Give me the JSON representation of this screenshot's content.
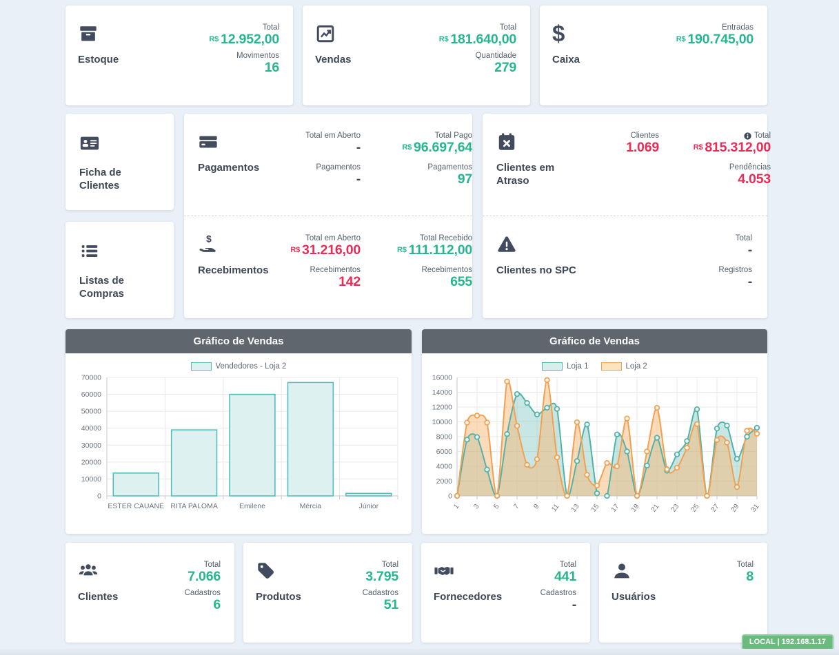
{
  "colors": {
    "background": "#e9f0f7",
    "accent_green": "#26b790",
    "alert_red": "#e92d56",
    "icon_slate": "#434c5e",
    "chart_header_bg": "#5f666e",
    "badge_green": "#6abb7d"
  },
  "cards": {
    "estoque": {
      "title": "Estoque",
      "stats": [
        {
          "label": "Total",
          "prefix": "R$",
          "value": "12.952,00",
          "color": "green"
        },
        {
          "label": "Movimentos",
          "value": "16",
          "color": "green"
        }
      ]
    },
    "vendas": {
      "title": "Vendas",
      "stats": [
        {
          "label": "Total",
          "prefix": "R$",
          "value": "181.640,00",
          "color": "green"
        },
        {
          "label": "Quantidade",
          "value": "279",
          "color": "green"
        }
      ]
    },
    "caixa": {
      "title": "Caixa",
      "stats": [
        {
          "label": "Entradas",
          "prefix": "R$",
          "value": "190.745,00",
          "color": "green"
        }
      ]
    },
    "ficha_clientes": {
      "title": "Ficha de Clientes"
    },
    "listas_compras": {
      "title": "Listas de Compras"
    },
    "pagamentos": {
      "title": "Pagamentos",
      "col1": [
        {
          "label": "Total em Aberto",
          "value": "-",
          "color": "dark"
        },
        {
          "label": "Pagamentos",
          "value": "-",
          "color": "dark"
        }
      ],
      "col2": [
        {
          "label": "Total Pago",
          "prefix": "R$",
          "value": "96.697,64",
          "color": "green"
        },
        {
          "label": "Pagamentos",
          "value": "97",
          "color": "green"
        }
      ]
    },
    "recebimentos": {
      "title": "Recebimentos",
      "col1": [
        {
          "label": "Total em Aberto",
          "prefix": "R$",
          "value": "31.216,00",
          "color": "red"
        },
        {
          "label": "Recebimentos",
          "value": "142",
          "color": "red"
        }
      ],
      "col2": [
        {
          "label": "Total Recebido",
          "prefix": "R$",
          "value": "111.112,00",
          "color": "green"
        },
        {
          "label": "Recebimentos",
          "value": "655",
          "color": "green"
        }
      ]
    },
    "clientes_atraso": {
      "title": "Clientes em Atraso",
      "col1": [
        {
          "label": "Clientes",
          "value": "1.069",
          "color": "red"
        }
      ],
      "col2": [
        {
          "label": "Total",
          "prefix": "R$",
          "value": "815.312,00",
          "color": "red"
        },
        {
          "label": "Pendências",
          "value": "4.053",
          "color": "red"
        }
      ]
    },
    "clientes_spc": {
      "title": "Clientes no SPC",
      "col2": [
        {
          "label": "Total",
          "value": "-",
          "color": "dark"
        },
        {
          "label": "Registros",
          "value": "-",
          "color": "dark"
        }
      ]
    },
    "clientes": {
      "title": "Clientes",
      "stats": [
        {
          "label": "Total",
          "value": "7.066",
          "color": "green"
        },
        {
          "label": "Cadastros",
          "value": "6",
          "color": "green"
        }
      ]
    },
    "produtos": {
      "title": "Produtos",
      "stats": [
        {
          "label": "Total",
          "value": "3.795",
          "color": "green"
        },
        {
          "label": "Cadastros",
          "value": "51",
          "color": "green"
        }
      ]
    },
    "fornecedores": {
      "title": "Fornecedores",
      "stats": [
        {
          "label": "Total",
          "value": "441",
          "color": "green"
        },
        {
          "label": "Cadastros",
          "value": "-",
          "color": "dark"
        }
      ]
    },
    "usuarios": {
      "title": "Usuários",
      "stats": [
        {
          "label": "Total",
          "value": "8",
          "color": "green"
        }
      ]
    }
  },
  "chart_data": [
    {
      "type": "bar",
      "title": "Gráfico de Vendas",
      "legend": [
        {
          "label": "Vendedores - Loja 2",
          "fill": "#ddf2f0",
          "stroke": "#55bcbc"
        }
      ],
      "categories": [
        "ESTER CAUANE",
        "RITA PALOMA",
        "Emilene",
        "Mércia",
        "Júnior"
      ],
      "values": [
        13500,
        39000,
        60000,
        67000,
        1500
      ],
      "xlabel": "",
      "ylabel": "",
      "ylim": [
        0,
        70000
      ],
      "ytick": 10000,
      "grid": true,
      "legend_position": "top",
      "bar_fill": "#ddf2f0",
      "bar_stroke": "#55bcbc"
    },
    {
      "type": "line",
      "title": "Gráfico de Vendas",
      "legend": [
        {
          "label": "Loja 1",
          "fill": "#d7eeec",
          "stroke": "#52b3aa"
        },
        {
          "label": "Loja 2",
          "fill": "#fde3c0",
          "stroke": "#f0a152"
        }
      ],
      "x": [
        1,
        2,
        3,
        4,
        5,
        6,
        7,
        8,
        9,
        10,
        11,
        12,
        13,
        14,
        15,
        16,
        17,
        18,
        19,
        20,
        21,
        22,
        23,
        24,
        25,
        26,
        27,
        28,
        29,
        30,
        31
      ],
      "xtick_labels": [
        1,
        3,
        5,
        7,
        9,
        11,
        13,
        15,
        17,
        19,
        21,
        23,
        25,
        27,
        29,
        31
      ],
      "series": [
        {
          "name": "Loja 1",
          "color": "#52b3aa",
          "fill": "rgba(133,199,193,0.45)",
          "values": [
            0,
            7600,
            7950,
            3550,
            0,
            8350,
            13750,
            12550,
            11000,
            11900,
            11750,
            0,
            4700,
            9650,
            350,
            0,
            8300,
            6000,
            0,
            4100,
            7850,
            3400,
            5600,
            7400,
            11700,
            0,
            9100,
            9500,
            5000,
            8000,
            9200
          ]
        },
        {
          "name": "Loja 2",
          "color": "#f0a152",
          "fill": "rgba(247,184,118,0.5)",
          "values": [
            0,
            9900,
            10850,
            9900,
            0,
            15450,
            9450,
            4200,
            4950,
            15650,
            5200,
            0,
            9950,
            2850,
            1400,
            4450,
            4000,
            10450,
            0,
            6000,
            11900,
            3600,
            3800,
            6500,
            9700,
            0,
            7550,
            7200,
            1200,
            8800,
            8400
          ]
        }
      ],
      "xlabel": "",
      "ylabel": "",
      "ylim": [
        0,
        16000
      ],
      "ytick": 2000,
      "grid": true,
      "legend_position": "top"
    }
  ],
  "status": {
    "local_badge": "LOCAL | 192.168.1.17"
  }
}
